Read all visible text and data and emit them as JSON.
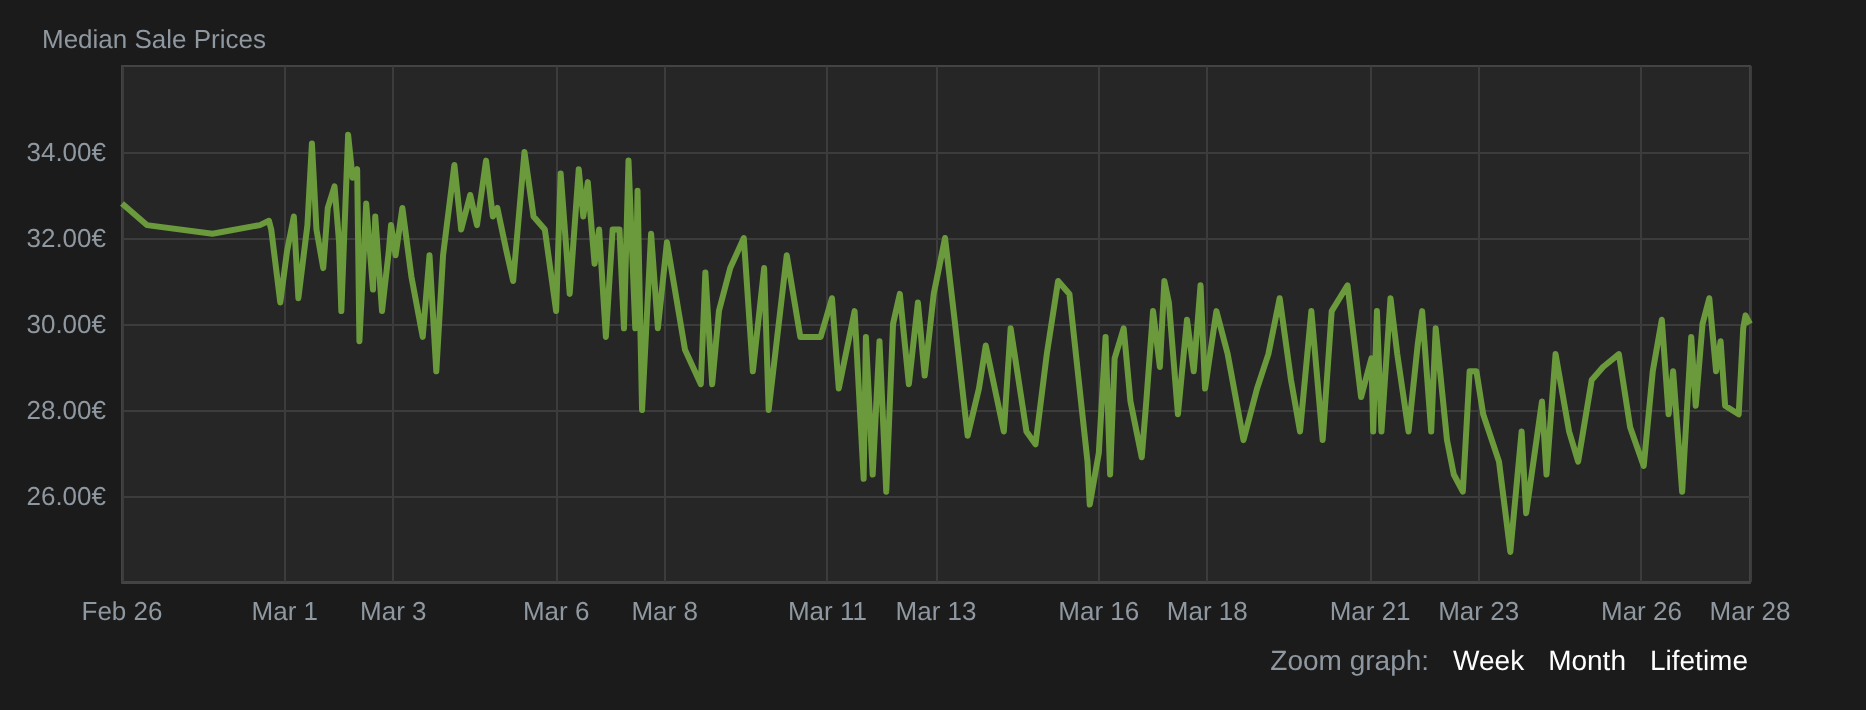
{
  "chart_data": {
    "type": "line",
    "title": "Median Sale Prices",
    "color": "#6a9a3c",
    "x": [
      "--02-26T00:00",
      "--02-26T11:00",
      "--02-27T16:00",
      "--02-28T13:00",
      "--02-28T17:00",
      "--02-28T18:00",
      "--02-28T22:00",
      "--03-01T01:00",
      "--03-01T04:00",
      "--03-01T06:00",
      "--03-01T10:00",
      "--03-01T12:00",
      "--03-01T14:00",
      "--03-01T17:00",
      "--03-01T19:00",
      "--03-01T22:00",
      "--03-02T00:00",
      "--03-02T01:00",
      "--03-02T04:00",
      "--03-02T06:00",
      "--03-02T08:00",
      "--03-02T09:00",
      "--03-02T12:00",
      "--03-02T15:00",
      "--03-02T16:00",
      "--03-02T19:00",
      "--03-02T22:00",
      "--03-02T23:00",
      "--03-03T01:00",
      "--03-03T04:00",
      "--03-03T08:00",
      "--03-03T13:00",
      "--03-03T16:00",
      "--03-03T19:00",
      "--03-03T22:00",
      "--03-04T03:00",
      "--03-04T06:00",
      "--03-04T10:00",
      "--03-04T13:00",
      "--03-04T17:00",
      "--03-04T20:00",
      "--03-04T22:00",
      "--03-05T02:00",
      "--03-05T05:00",
      "--03-05T10:00",
      "--03-05T14:00",
      "--03-05T19:00",
      "--03-06T00:00",
      "--03-06T02:00",
      "--03-06T06:00",
      "--03-06T10:00",
      "--03-06T12:00",
      "--03-06T14:00",
      "--03-06T17:00",
      "--03-06T19:00",
      "--03-06T22:00",
      "--03-07T01:00",
      "--03-07T04:00",
      "--03-07T06:00",
      "--03-07T08:00",
      "--03-07T11:00",
      "--03-07T12:00",
      "--03-07T14:00",
      "--03-07T18:00",
      "--03-07T21:00",
      "--03-08T01:00",
      "--03-08T09:00",
      "--03-08T16:00",
      "--03-08T18:00",
      "--03-08T21:00",
      "--03-09T00:00",
      "--03-09T05:00",
      "--03-09T11:00",
      "--03-09T15:00",
      "--03-09T20:00",
      "--03-09T22:00",
      "--03-10T06:00",
      "--03-10T12:00",
      "--03-10T21:00",
      "--03-11T02:00",
      "--03-11T05:00",
      "--03-11T12:00",
      "--03-11T16:00",
      "--03-11T17:00",
      "--03-11T20:00",
      "--03-11T23:00",
      "--03-12T02:00",
      "--03-12T05:00",
      "--03-12T08:00",
      "--03-12T12:00",
      "--03-12T16:00",
      "--03-12T19:00",
      "--03-12T23:00",
      "--03-13T04:00",
      "--03-13T08:00",
      "--03-13T14:00",
      "--03-13T19:00",
      "--03-13T22:00",
      "--03-14T06:00",
      "--03-14T09:00",
      "--03-14T16:00",
      "--03-14T20:00",
      "--03-15T01:00",
      "--03-15T06:00",
      "--03-15T11:00",
      "--03-15T19:00",
      "--03-15T20:00",
      "--03-16T00:00",
      "--03-16T03:00",
      "--03-16T05:00",
      "--03-16T07:00",
      "--03-16T11:00",
      "--03-16T14:00",
      "--03-16T19:00",
      "--03-16T21:00",
      "--03-17T00:00",
      "--03-17T03:00",
      "--03-17T05:00",
      "--03-17T07:00",
      "--03-17T11:00",
      "--03-17T15:00",
      "--03-17T18:00",
      "--03-17T21:00",
      "--03-17T23:00",
      "--03-18T04:00",
      "--03-18T09:00",
      "--03-18T16:00",
      "--03-18T22:00",
      "--03-19T03:00",
      "--03-19T08:00",
      "--03-19T13:00",
      "--03-19T17:00",
      "--03-19T22:00",
      "--03-20T03:00",
      "--03-20T07:00",
      "--03-20T14:00",
      "--03-20T20:00",
      "--03-21T00:35",
      "--03-21T01:21",
      "--03-21T03:00",
      "--03-21T05:00",
      "--03-21T09:00",
      "--03-21T12:00",
      "--03-21T17:00",
      "--03-21T21:00",
      "--03-21T23:00",
      "--03-22T03:00",
      "--03-22T05:00",
      "--03-22T10:00",
      "--03-22T13:00",
      "--03-22T17:00",
      "--03-22T20:00",
      "--03-22T23:00",
      "--03-23T02:00",
      "--03-23T09:00",
      "--03-23T14:00",
      "--03-23T19:00",
      "--03-23T21:00",
      "--03-24T04:00",
      "--03-24T06:00",
      "--03-24T10:00",
      "--03-24T16:00",
      "--03-24T20:00",
      "--03-25T02:00",
      "--03-25T07:00",
      "--03-25T14:00",
      "--03-25T19:00",
      "--03-26T01:00",
      "--03-26T05:00",
      "--03-26T09:00",
      "--03-26T12:00",
      "--03-26T14:00",
      "--03-26T18:00",
      "--03-26T22:00",
      "--03-27T00:00",
      "--03-27T03:00",
      "--03-27T06:00",
      "--03-27T09:00",
      "--03-27T11:00",
      "--03-27T13:00",
      "--03-27T19:00",
      "--03-27T21:00",
      "--03-27T22:00",
      "--03-28T00:00"
    ],
    "values": [
      32.8,
      32.3,
      32.1,
      32.3,
      32.4,
      32.2,
      30.5,
      31.7,
      32.5,
      30.6,
      32.3,
      34.2,
      32.2,
      31.3,
      32.7,
      33.2,
      31.9,
      30.3,
      34.4,
      33.4,
      33.6,
      29.6,
      32.8,
      30.8,
      32.5,
      30.3,
      31.7,
      32.3,
      31.6,
      32.7,
      31.1,
      29.7,
      31.6,
      28.9,
      31.6,
      33.7,
      32.2,
      33.0,
      32.3,
      33.8,
      32.5,
      32.7,
      31.7,
      31.0,
      34.0,
      32.5,
      32.2,
      30.3,
      33.5,
      30.7,
      33.6,
      32.5,
      33.3,
      31.4,
      32.2,
      29.7,
      32.2,
      32.2,
      29.9,
      33.8,
      29.9,
      33.1,
      28.0,
      32.1,
      29.9,
      31.9,
      29.4,
      28.6,
      31.2,
      28.6,
      30.3,
      31.3,
      32.0,
      28.9,
      31.3,
      28.0,
      31.6,
      29.7,
      29.7,
      30.6,
      28.5,
      30.3,
      26.4,
      29.7,
      26.5,
      29.6,
      26.1,
      30.0,
      30.7,
      28.6,
      30.5,
      28.8,
      30.7,
      32.0,
      30.2,
      27.4,
      28.5,
      29.5,
      27.5,
      29.9,
      27.5,
      27.2,
      29.3,
      31.0,
      30.7,
      26.8,
      25.8,
      27.0,
      29.7,
      26.5,
      29.2,
      29.9,
      28.2,
      26.9,
      28.2,
      30.3,
      29.0,
      31.0,
      30.5,
      27.9,
      30.1,
      28.9,
      30.9,
      28.5,
      30.3,
      29.3,
      27.3,
      28.5,
      29.3,
      30.6,
      28.7,
      27.5,
      30.3,
      27.3,
      30.3,
      30.9,
      28.3,
      29.2,
      27.5,
      30.3,
      27.5,
      30.6,
      29.3,
      27.5,
      29.5,
      30.3,
      27.5,
      29.9,
      27.3,
      26.5,
      26.1,
      28.9,
      28.9,
      27.9,
      26.8,
      24.7,
      27.5,
      25.6,
      28.2,
      26.5,
      29.3,
      27.5,
      26.8,
      28.7,
      29.0,
      29.3,
      27.6,
      26.7,
      28.9,
      30.1,
      27.9,
      28.9,
      26.1,
      29.7,
      28.1,
      30.0,
      30.6,
      28.9,
      29.6,
      28.1,
      27.9,
      29.9,
      30.2,
      30.0
    ],
    "xlim": [
      "--02-26",
      "--03-28"
    ],
    "xticks": [
      {
        "value": "--02-26",
        "label": "Feb 26"
      },
      {
        "value": "--03-01",
        "label": "Mar 1"
      },
      {
        "value": "--03-03",
        "label": "Mar 3"
      },
      {
        "value": "--03-06",
        "label": "Mar 6"
      },
      {
        "value": "--03-08",
        "label": "Mar 8"
      },
      {
        "value": "--03-11",
        "label": "Mar 11"
      },
      {
        "value": "--03-13",
        "label": "Mar 13"
      },
      {
        "value": "--03-16",
        "label": "Mar 16"
      },
      {
        "value": "--03-18",
        "label": "Mar 18"
      },
      {
        "value": "--03-21",
        "label": "Mar 21"
      },
      {
        "value": "--03-23",
        "label": "Mar 23"
      },
      {
        "value": "--03-26",
        "label": "Mar 26"
      },
      {
        "value": "--03-28",
        "label": "Mar 28"
      }
    ],
    "ylim": [
      24,
      36
    ],
    "yticks": [
      {
        "value": 26,
        "label": "26.00€"
      },
      {
        "value": 28,
        "label": "28.00€"
      },
      {
        "value": 30,
        "label": "30.00€"
      },
      {
        "value": 32,
        "label": "32.00€"
      },
      {
        "value": 34,
        "label": "34.00€"
      }
    ],
    "grid": true,
    "annotations": [
      "Zoom graph:",
      "Week",
      "Month",
      "Lifetime"
    ]
  }
}
